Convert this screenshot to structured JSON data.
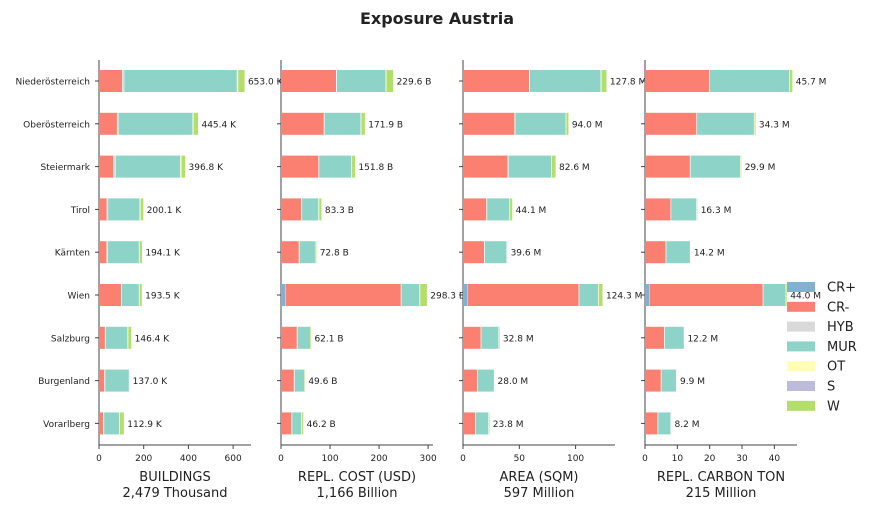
{
  "title": "Exposure Austria",
  "colors": {
    "CR+": "#80b1d3",
    "CR-": "#fb8072",
    "HYB": "#d9d9d9",
    "MUR": "#8dd3c7",
    "OT": "#ffffb3",
    "S": "#bebada",
    "W": "#b3de69"
  },
  "legend": [
    "CR+",
    "CR-",
    "HYB",
    "MUR",
    "OT",
    "S",
    "W"
  ],
  "chart_data": [
    {
      "type": "bar",
      "orientation": "horizontal",
      "stacked": true,
      "xlabel": "BUILDINGS",
      "subtitle": "2,479 Thousand",
      "xlim": [
        0,
        680
      ],
      "xticks": [
        0,
        200,
        400,
        600
      ],
      "categories": [
        "Niederösterreich",
        "Oberösterreich",
        "Steiermark",
        "Tirol",
        "Kärnten",
        "Wien",
        "Salzburg",
        "Burgenland",
        "Vorarlberg"
      ],
      "series": [
        {
          "name": "CR+",
          "values": [
            0,
            0,
            0,
            0,
            0,
            0,
            0,
            0,
            0
          ]
        },
        {
          "name": "CR-",
          "values": [
            105,
            82,
            65,
            36,
            35,
            100,
            28,
            25,
            20
          ]
        },
        {
          "name": "HYB",
          "values": [
            8,
            5,
            10,
            5,
            5,
            3,
            3,
            3,
            3
          ]
        },
        {
          "name": "MUR",
          "values": [
            505,
            333,
            290,
            142,
            140,
            77,
            98,
            107,
            68
          ]
        },
        {
          "name": "OT",
          "values": [
            5,
            3,
            4,
            3,
            2,
            2,
            2,
            0,
            2
          ]
        },
        {
          "name": "S",
          "values": [
            0,
            0,
            0,
            0,
            0,
            0,
            0,
            0,
            0
          ]
        },
        {
          "name": "W",
          "values": [
            30,
            22,
            18,
            14,
            12,
            11,
            15,
            2,
            20
          ]
        }
      ],
      "totals_text": [
        "653.0 K",
        "445.4 K",
        "396.8 K",
        "200.1 K",
        "194.1 K",
        "193.5 K",
        "146.4 K",
        "137.0 K",
        "112.9 K"
      ]
    },
    {
      "type": "bar",
      "orientation": "horizontal",
      "stacked": true,
      "xlabel": "REPL. COST (USD)",
      "subtitle": "1,166 Billion",
      "xlim": [
        0,
        310
      ],
      "xticks": [
        0,
        100,
        200,
        300
      ],
      "categories": [
        "Niederösterreich",
        "Oberösterreich",
        "Steiermark",
        "Tirol",
        "Kärnten",
        "Wien",
        "Salzburg",
        "Burgenland",
        "Vorarlberg"
      ],
      "series": [
        {
          "name": "CR+",
          "values": [
            0,
            0,
            0,
            0,
            0,
            10,
            0,
            0,
            0
          ]
        },
        {
          "name": "CR-",
          "values": [
            113,
            88,
            77,
            42,
            37,
            235,
            33,
            27,
            22
          ]
        },
        {
          "name": "HYB",
          "values": [
            1,
            1,
            1,
            1,
            1,
            1,
            1,
            1,
            1
          ]
        },
        {
          "name": "MUR",
          "values": [
            100,
            74,
            66,
            34,
            32,
            37,
            26,
            20,
            19
          ]
        },
        {
          "name": "OT",
          "values": [
            1,
            1,
            1,
            1,
            0,
            1,
            0,
            0,
            1
          ]
        },
        {
          "name": "S",
          "values": [
            0,
            0,
            0,
            0,
            0,
            0,
            0,
            0,
            0
          ]
        },
        {
          "name": "W",
          "values": [
            14.6,
            7.9,
            6.8,
            5.3,
            2.8,
            14.3,
            2.1,
            1.6,
            3.2
          ]
        }
      ],
      "totals_text": [
        "229.6 B",
        "171.9 B",
        "151.8 B",
        "83.3 B",
        "72.8 B",
        "298.3 B",
        "62.1 B",
        "49.6 B",
        "46.2 B"
      ]
    },
    {
      "type": "bar",
      "orientation": "horizontal",
      "stacked": true,
      "xlabel": "AREA (SQM)",
      "subtitle": "597 Million",
      "xlim": [
        0,
        135
      ],
      "xticks": [
        0,
        50,
        100
      ],
      "categories": [
        "Niederösterreich",
        "Oberösterreich",
        "Steiermark",
        "Tirol",
        "Kärnten",
        "Wien",
        "Salzburg",
        "Burgenland",
        "Vorarlberg"
      ],
      "series": [
        {
          "name": "CR+",
          "values": [
            0,
            0,
            0,
            0,
            0,
            4,
            0,
            0,
            0
          ]
        },
        {
          "name": "CR-",
          "values": [
            59,
            46,
            40,
            21,
            19,
            99,
            16,
            13,
            11
          ]
        },
        {
          "name": "HYB",
          "values": [
            0.5,
            0.5,
            0.5,
            0.5,
            0.5,
            0.3,
            0.3,
            0.3,
            0.3
          ]
        },
        {
          "name": "MUR",
          "values": [
            63,
            45,
            38,
            20,
            19.5,
            17,
            15.5,
            14.5,
            11.5
          ]
        },
        {
          "name": "OT",
          "values": [
            0.5,
            0.3,
            0.3,
            0.3,
            0.2,
            0.2,
            0.2,
            0.1,
            0.2
          ]
        },
        {
          "name": "S",
          "values": [
            0,
            0,
            0,
            0,
            0,
            0,
            0,
            0,
            0
          ]
        },
        {
          "name": "W",
          "values": [
            4.8,
            2.2,
            3.8,
            2.3,
            0.4,
            3.8,
            0.8,
            0.1,
            0.8
          ]
        }
      ],
      "totals_text": [
        "127.8 M",
        "94.0 M",
        "82.6 M",
        "44.1 M",
        "39.6 M",
        "124.3 M",
        "32.8 M",
        "28.0 M",
        "23.8 M"
      ]
    },
    {
      "type": "bar",
      "orientation": "horizontal",
      "stacked": true,
      "xlabel": "REPL. CARBON TON",
      "subtitle": "215 Million",
      "xlim": [
        0,
        47
      ],
      "xticks": [
        0,
        10,
        20,
        30,
        40
      ],
      "categories": [
        "Niederösterreich",
        "Oberösterreich",
        "Steiermark",
        "Tirol",
        "Kärnten",
        "Wien",
        "Salzburg",
        "Burgenland",
        "Vorarlberg"
      ],
      "series": [
        {
          "name": "CR+",
          "values": [
            0,
            0,
            0,
            0,
            0,
            1.5,
            0,
            0,
            0
          ]
        },
        {
          "name": "CR-",
          "values": [
            20,
            16,
            14,
            8,
            6.5,
            35,
            6,
            5,
            4
          ]
        },
        {
          "name": "HYB",
          "values": [
            0.1,
            0.1,
            0.1,
            0.1,
            0.1,
            0.1,
            0.1,
            0.1,
            0.1
          ]
        },
        {
          "name": "MUR",
          "values": [
            24.6,
            17.7,
            15.4,
            7.9,
            7.4,
            7,
            6,
            4.6,
            3.9
          ]
        },
        {
          "name": "OT",
          "values": [
            0.1,
            0.1,
            0.1,
            0.1,
            0.1,
            0.1,
            0.1,
            0.1,
            0.1
          ]
        },
        {
          "name": "S",
          "values": [
            0,
            0,
            0,
            0,
            0,
            0,
            0,
            0,
            0
          ]
        },
        {
          "name": "W",
          "values": [
            0.9,
            0.4,
            0.3,
            0.2,
            0.1,
            0.3,
            0,
            0.1,
            0.1
          ]
        }
      ],
      "totals_text": [
        "45.7 M",
        "34.3 M",
        "29.9 M",
        "16.3 M",
        "14.2 M",
        "44.0 M",
        "12.2 M",
        "9.9 M",
        "8.2 M"
      ]
    }
  ]
}
